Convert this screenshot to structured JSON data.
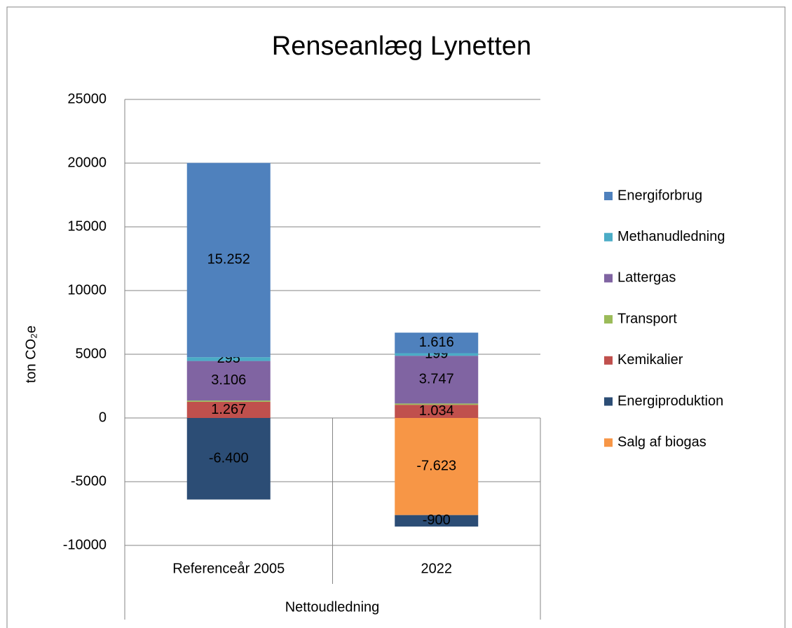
{
  "chart_data": {
    "type": "stacked_bar",
    "title": "Renseanlæg Lynetten",
    "y_label": "ton CO₂e",
    "x_group_label": "Nettoudledning",
    "categories": [
      "Referenceår 2005",
      "2022"
    ],
    "ylim": [
      -10000,
      25000
    ],
    "yticks": [
      -10000,
      -5000,
      0,
      5000,
      10000,
      15000,
      20000,
      25000
    ],
    "grid": true,
    "legend_position": "right",
    "series": [
      {
        "name": "Salg af biogas",
        "color": "#f79646",
        "values": [
          null,
          -7623
        ],
        "value_labels": [
          null,
          "-7.623"
        ]
      },
      {
        "name": "Energiproduktion",
        "color": "#2c4d75",
        "values": [
          -6400,
          -900
        ],
        "value_labels": [
          "-6.400",
          "-900"
        ]
      },
      {
        "name": "Kemikalier",
        "color": "#c0504d",
        "values": [
          1267,
          1034
        ],
        "value_labels": [
          "1.267",
          "1.034"
        ]
      },
      {
        "name": "Transport",
        "color": "#9bbb59",
        "values": [
          100,
          100
        ]
      },
      {
        "name": "Lattergas",
        "color": "#8064a2",
        "values": [
          3106,
          3747
        ],
        "value_labels": [
          "3.106",
          "3.747"
        ]
      },
      {
        "name": "Methanudledning",
        "color": "#4bacc6",
        "values": [
          295,
          199
        ],
        "value_labels": [
          "295",
          "199"
        ]
      },
      {
        "name": "Energiforbrug",
        "color": "#4f81bd",
        "values": [
          15252,
          1616
        ],
        "value_labels": [
          "15.252",
          "1.616"
        ]
      }
    ]
  }
}
